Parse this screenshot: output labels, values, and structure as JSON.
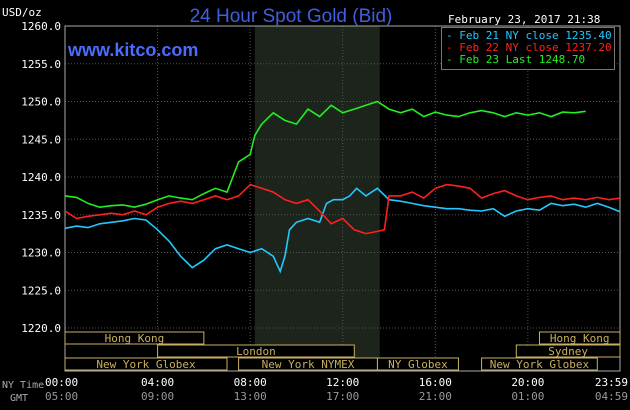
{
  "header": {
    "title": "24 Hour Spot Gold (Bid)",
    "brand": "www.kitco.com",
    "unit": "USD/oz",
    "datetime": "February 23, 2017 21:38"
  },
  "legend": {
    "items": [
      {
        "label": "Feb 21 NY close 1235.40",
        "color": "#22c8ff"
      },
      {
        "label": "Feb 22 NY close 1237.20",
        "color": "#ff2020"
      },
      {
        "label": "Feb 23 Last 1248.70",
        "color": "#22ee22"
      }
    ]
  },
  "axis_labels": {
    "ny_time": "NY Time",
    "gmt": "GMT"
  },
  "chart_data": {
    "type": "line",
    "title": "24 Hour Spot Gold (Bid)",
    "ylabel": "USD/oz",
    "ylim": [
      1220,
      1260
    ],
    "yticks": [
      "1220.0",
      "1225.0",
      "1230.0",
      "1235.0",
      "1240.0",
      "1245.0",
      "1250.0",
      "1255.0",
      "1260.0"
    ],
    "xlim": [
      0,
      23.98
    ],
    "xticks": [
      {
        "t": 0,
        "ny": "00:00",
        "gmt": "05:00"
      },
      {
        "t": 4,
        "ny": "04:00",
        "gmt": "09:00"
      },
      {
        "t": 8,
        "ny": "08:00",
        "gmt": "13:00"
      },
      {
        "t": 12,
        "ny": "12:00",
        "gmt": "17:00"
      },
      {
        "t": 16,
        "ny": "16:00",
        "gmt": "21:00"
      },
      {
        "t": 20,
        "ny": "20:00",
        "gmt": "01:00"
      },
      {
        "t": 23.98,
        "ny": "23:59",
        "gmt": "04:59"
      }
    ],
    "highlight_band": [
      8.2,
      13.6
    ],
    "grid": true,
    "series": [
      {
        "name": "Feb 21 NY close 1235.40",
        "color": "#22c8ff",
        "x": [
          0,
          0.5,
          1,
          1.5,
          2,
          2.5,
          3,
          3.5,
          4,
          4.5,
          5,
          5.5,
          6,
          6.5,
          7,
          7.5,
          8,
          8.5,
          9,
          9.3,
          9.5,
          9.7,
          10,
          10.5,
          11,
          11.3,
          11.6,
          12,
          12.3,
          12.6,
          13,
          13.5,
          14,
          14.5,
          15,
          15.5,
          16,
          16.5,
          17,
          17.5,
          18,
          18.5,
          19,
          19.5,
          20,
          20.5,
          21,
          21.5,
          22,
          22.5,
          23,
          23.5,
          23.98
        ],
        "y": [
          1233.2,
          1233.5,
          1233.3,
          1233.8,
          1234.0,
          1234.2,
          1234.5,
          1234.3,
          1233.0,
          1231.5,
          1229.5,
          1228.0,
          1229.0,
          1230.5,
          1231.0,
          1230.5,
          1230.0,
          1230.5,
          1229.5,
          1227.5,
          1229.5,
          1233.0,
          1234.0,
          1234.5,
          1234.0,
          1236.5,
          1237.0,
          1237.0,
          1237.5,
          1238.5,
          1237.5,
          1238.5,
          1237.0,
          1236.8,
          1236.5,
          1236.2,
          1236.0,
          1235.8,
          1235.8,
          1235.6,
          1235.5,
          1235.8,
          1234.8,
          1235.5,
          1235.8,
          1235.6,
          1236.5,
          1236.2,
          1236.4,
          1236.0,
          1236.5,
          1236.0,
          1235.4
        ]
      },
      {
        "name": "Feb 22 NY close 1237.20",
        "color": "#ff2020",
        "x": [
          0,
          0.5,
          1,
          1.5,
          2,
          2.5,
          3,
          3.5,
          4,
          4.5,
          5,
          5.5,
          6,
          6.5,
          7,
          7.5,
          8,
          8.5,
          9,
          9.5,
          10,
          10.5,
          11,
          11.5,
          12,
          12.5,
          13,
          13.5,
          13.8,
          14,
          14.5,
          15,
          15.5,
          16,
          16.5,
          17,
          17.5,
          18,
          18.5,
          19,
          19.5,
          20,
          20.5,
          21,
          21.5,
          22,
          22.5,
          23,
          23.5,
          23.98
        ],
        "y": [
          1235.5,
          1234.5,
          1234.8,
          1235.0,
          1235.2,
          1235.0,
          1235.5,
          1235.0,
          1236.0,
          1236.5,
          1236.8,
          1236.5,
          1237.0,
          1237.5,
          1237.0,
          1237.5,
          1239.0,
          1238.5,
          1238.0,
          1237.0,
          1236.5,
          1237.0,
          1235.5,
          1233.8,
          1234.5,
          1233.0,
          1232.5,
          1232.8,
          1233.0,
          1237.5,
          1237.5,
          1238.0,
          1237.2,
          1238.5,
          1239.0,
          1238.8,
          1238.5,
          1237.2,
          1237.8,
          1238.2,
          1237.5,
          1237.0,
          1237.3,
          1237.5,
          1237.0,
          1237.2,
          1237.0,
          1237.3,
          1237.0,
          1237.2
        ]
      },
      {
        "name": "Feb 23 Last 1248.70",
        "color": "#22ee22",
        "x": [
          0,
          0.5,
          1,
          1.5,
          2,
          2.5,
          3,
          3.5,
          4,
          4.5,
          5,
          5.5,
          6,
          6.5,
          7,
          7.5,
          8,
          8.2,
          8.5,
          9,
          9.5,
          10,
          10.5,
          11,
          11.5,
          12,
          12.5,
          13,
          13.5,
          14,
          14.5,
          15,
          15.5,
          16,
          16.5,
          17,
          17.5,
          18,
          18.5,
          19,
          19.5,
          20,
          20.5,
          21,
          21.5,
          22,
          22.5
        ],
        "y": [
          1237.5,
          1237.3,
          1236.5,
          1236.0,
          1236.2,
          1236.3,
          1236.0,
          1236.4,
          1237.0,
          1237.5,
          1237.2,
          1237.0,
          1237.8,
          1238.5,
          1238.0,
          1242.0,
          1243.0,
          1245.5,
          1247.0,
          1248.5,
          1247.5,
          1247.0,
          1249.0,
          1248.0,
          1249.5,
          1248.5,
          1249.0,
          1249.5,
          1250.0,
          1249.0,
          1248.5,
          1249.0,
          1248.0,
          1248.6,
          1248.2,
          1248.0,
          1248.5,
          1248.8,
          1248.5,
          1248.0,
          1248.5,
          1248.2,
          1248.5,
          1248.0,
          1248.6,
          1248.5,
          1248.7
        ]
      }
    ],
    "session_bars": [
      {
        "label": "Hong Kong",
        "rows": [
          {
            "start": 0,
            "end": 6,
            "label": "Hong Kong"
          },
          {
            "start": 20.5,
            "end": 24,
            "label": "Hong Kong"
          }
        ]
      },
      {
        "label": "London",
        "rows": [
          {
            "start": 4,
            "end": 12.5,
            "label": "London"
          },
          {
            "start": 19.5,
            "end": 24,
            "label": "Sydney"
          }
        ]
      },
      {
        "label": "New York",
        "rows": [
          {
            "start": 0,
            "end": 7,
            "label": "New York Globex"
          },
          {
            "start": 7.5,
            "end": 13.5,
            "label": "New York NYMEX"
          },
          {
            "start": 13.5,
            "end": 17,
            "label": "NY Globex"
          },
          {
            "start": 18,
            "end": 23,
            "label": "New York Globex"
          }
        ]
      }
    ]
  }
}
